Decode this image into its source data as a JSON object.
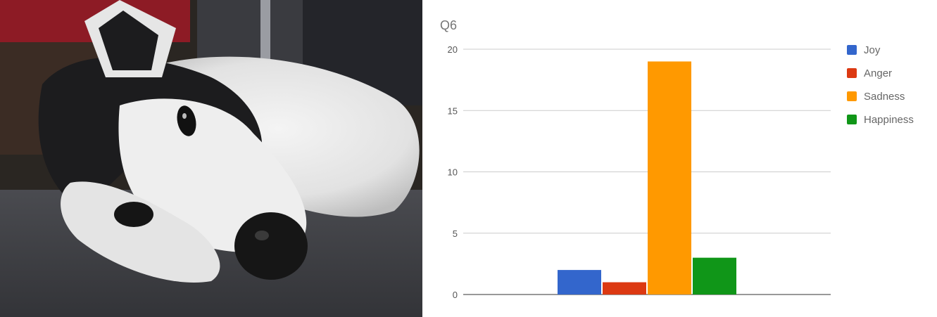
{
  "photo": {
    "subject_icon": "sleeping-husky-photo",
    "colors": {
      "fur_white": "#e9e9e9",
      "fur_dark": "#1c1c1e",
      "carpet": "#3d3e42",
      "red_fabric": "#8d1b25"
    }
  },
  "chart_data": {
    "type": "bar",
    "title": "Q6",
    "xlabel": "",
    "ylabel": "",
    "ylim": [
      0,
      20
    ],
    "yticks": [
      0,
      5,
      10,
      15,
      20
    ],
    "grid": true,
    "legend_position": "right",
    "categories": [
      ""
    ],
    "series": [
      {
        "name": "Joy",
        "values": [
          2
        ],
        "color": "#3366cc"
      },
      {
        "name": "Anger",
        "values": [
          1
        ],
        "color": "#dc3912"
      },
      {
        "name": "Sadness",
        "values": [
          19
        ],
        "color": "#ff9900"
      },
      {
        "name": "Happiness",
        "values": [
          3
        ],
        "color": "#109618"
      }
    ]
  }
}
